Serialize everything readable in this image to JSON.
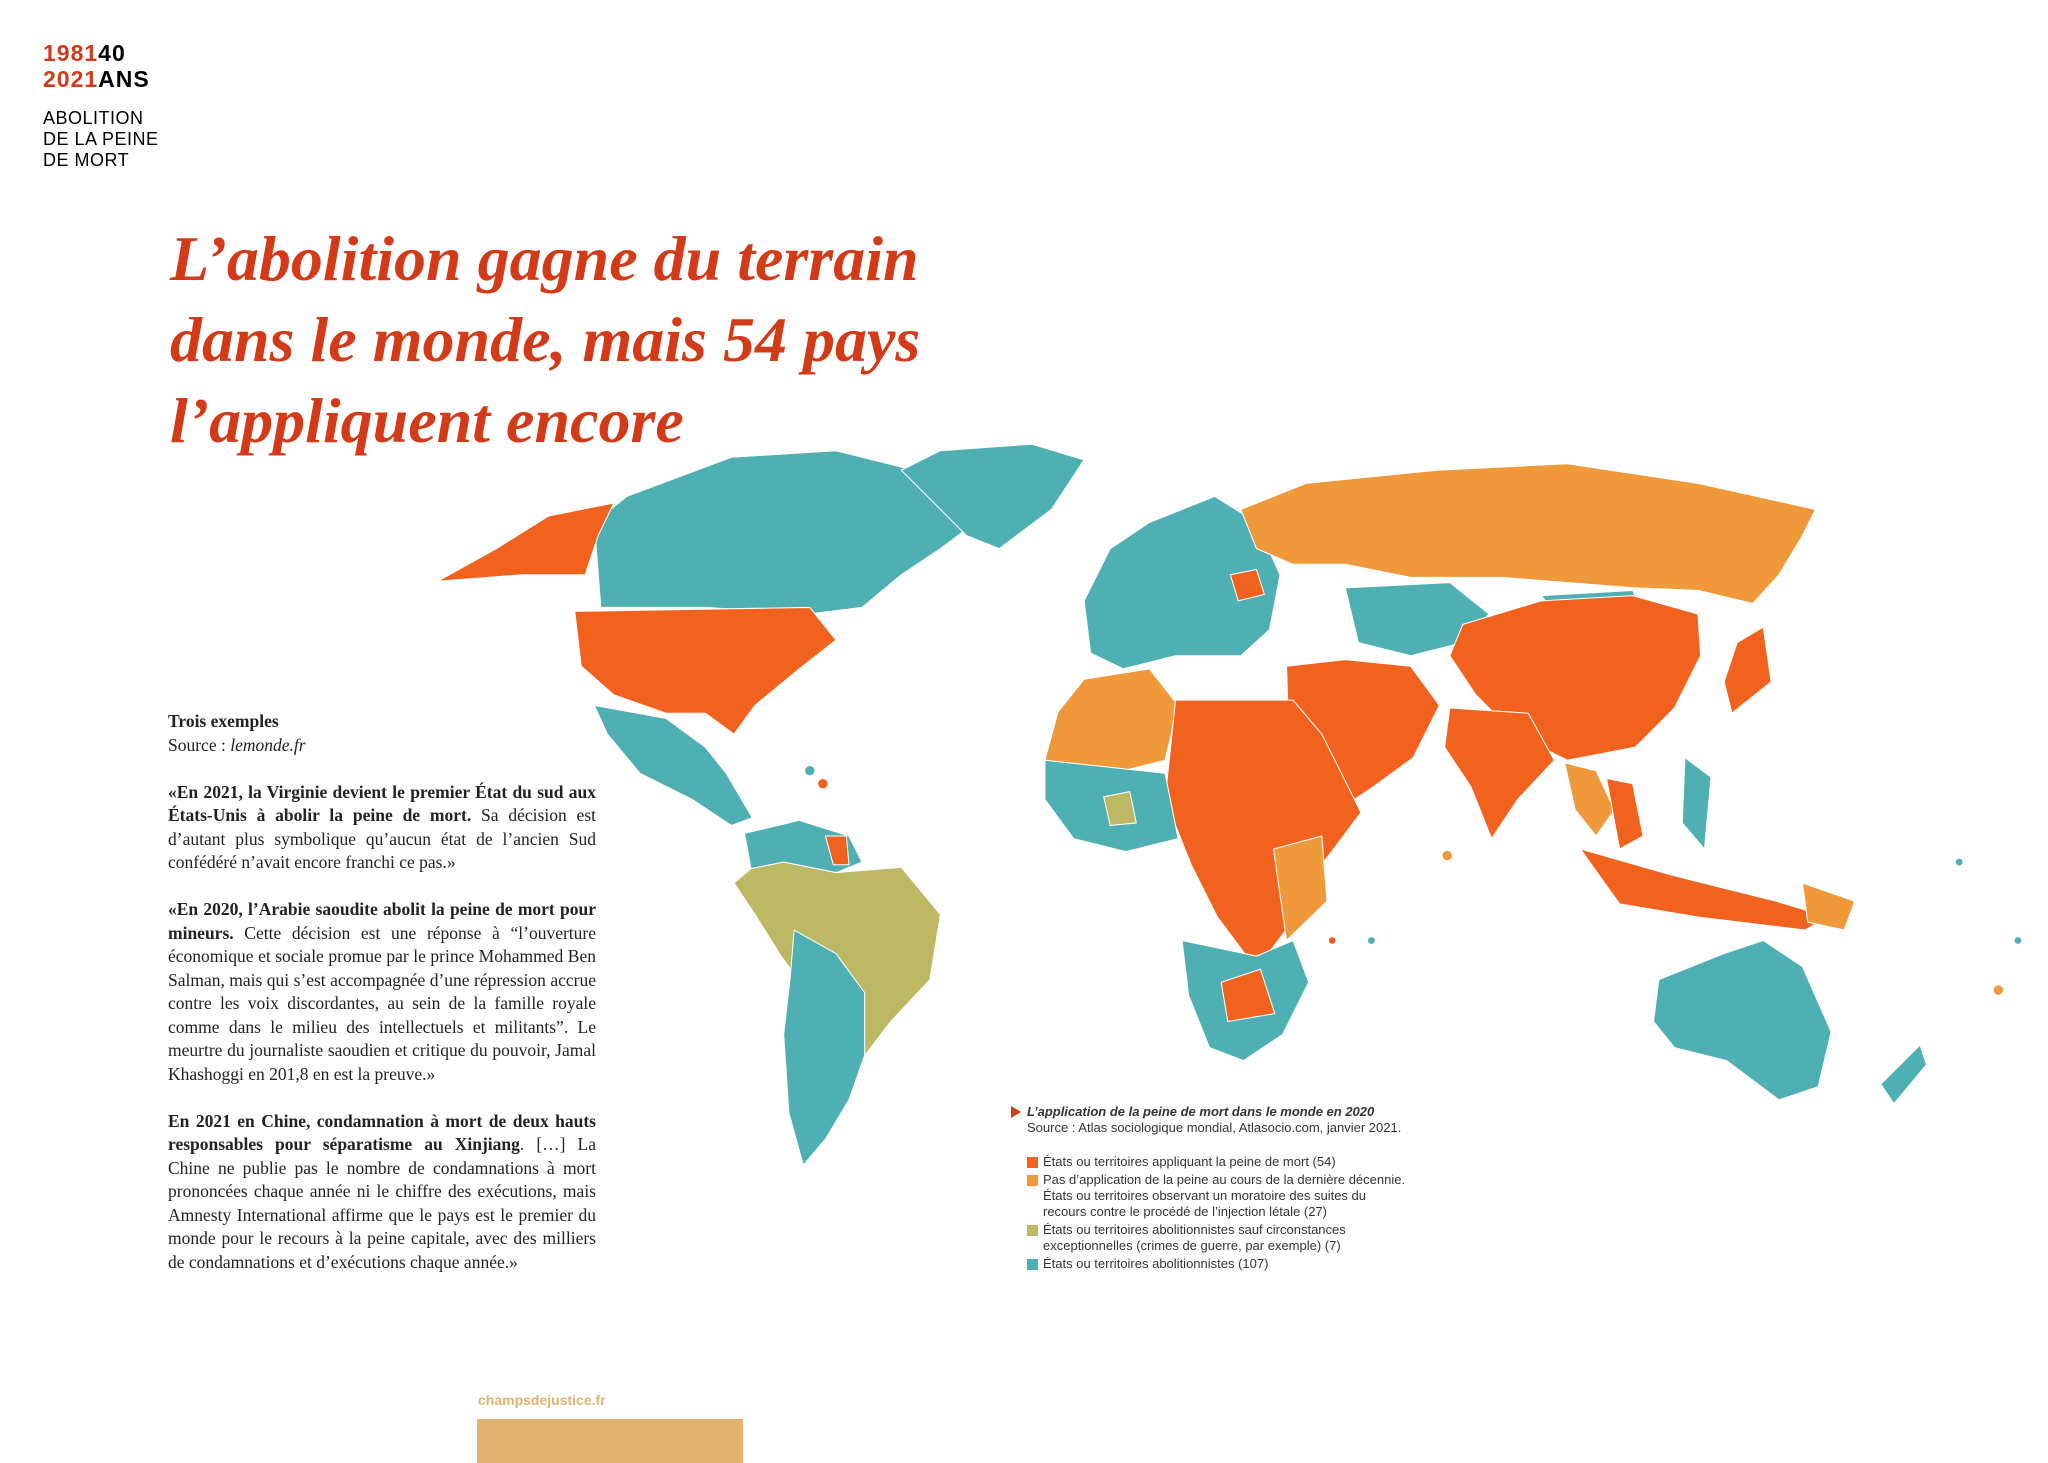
{
  "header": {
    "logo": {
      "year_start": "1981",
      "anniversary": "40",
      "year_end": "2021",
      "unit": "ANS",
      "subtitle_lines": [
        "ABOLITION",
        "DE LA PEINE",
        "DE MORT"
      ]
    },
    "title_lines": [
      "L’abolition gagne du terrain",
      "dans le monde, mais 54 pays",
      "l’appliquent encore"
    ]
  },
  "sidebar": {
    "heading": "Trois exemples",
    "source_label": "Source :",
    "source_name": "lemonde.fr",
    "paragraphs": [
      {
        "bold": "«En 2021, la Virginie devient le premier État du sud aux États-Unis à abolir la peine de mort.",
        "text": " Sa décision est d’autant plus symbolique qu’aucun état de l’ancien Sud confédéré n’avait encore franchi ce pas.»"
      },
      {
        "bold": "«En 2020, l’Arabie saoudite abolit la peine de mort pour mineurs.",
        "text": " Cette décision est une réponse à “l’ouverture économique et sociale promue par le prince Mohammed Ben Salman, mais qui s’est accompagnée d’une répression accrue contre les voix discordantes, au sein de la famille royale comme dans le milieu des intellectuels et militants”. Le meurtre du journaliste saoudien et critique du pouvoir, Jamal Khashoggi en 201,8 en est la preuve.»"
      },
      {
        "bold": "En 2021 en Chine, condamnation à mort de deux hauts responsables pour séparatisme au Xinjiang",
        "text": ". […] La Chine ne publie pas le nombre de condamnations à mort prononcées chaque année ni le chiffre des exécutions, mais Amnesty International affirme que le pays est le premier du monde pour le recours à la peine capitale, avec des milliers de condamnations et d’exécutions chaque année.»"
      }
    ]
  },
  "map": {
    "caption": "L’application de la peine de mort dans le monde en 2020",
    "source": "Source :  Atlas sociologique mondial, Atlasocio.com, janvier 2021.",
    "legend": [
      {
        "label": "États ou territoires appliquant la peine de mort (54)",
        "color": "#f0621e"
      },
      {
        "label": "Pas d’application de la peine au cours de la dernière décennie. États ou territoires observant un moratoire des suites du recours contre le procédé de l’injection létale (27)",
        "color": "#f0993b"
      },
      {
        "label": "États ou territoires abolitionnistes sauf circonstances exceptionnelles (crimes de guerre, par exemple) (7)",
        "color": "#bcb863"
      },
      {
        "label": "États ou territoires abolitionnistes (107)",
        "color": "#4fb0b3"
      }
    ]
  },
  "footer": {
    "url": "champsdejustice.fr"
  }
}
